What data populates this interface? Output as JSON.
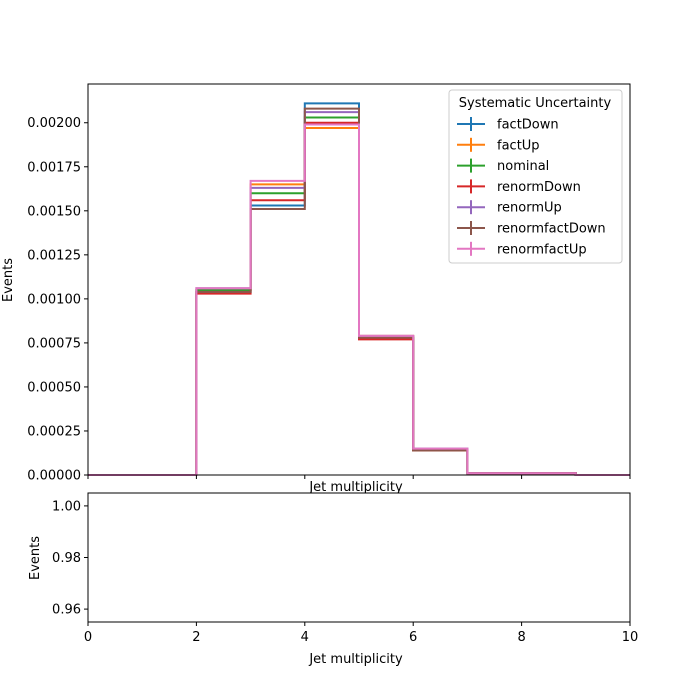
{
  "chart_data": [
    {
      "type": "line",
      "subtype": "step-histogram",
      "xlabel": "Jet multiplicity",
      "ylabel": "Events",
      "xlim": [
        0,
        10
      ],
      "ylim": [
        0,
        0.00222
      ],
      "yticks": [
        "0.00000",
        "0.00025",
        "0.00050",
        "0.00075",
        "0.00100",
        "0.00125",
        "0.00150",
        "0.00175",
        "0.00200"
      ],
      "ytick_values": [
        0,
        0.00025,
        0.0005,
        0.00075,
        0.001,
        0.00125,
        0.0015,
        0.00175,
        0.002
      ],
      "bin_edges": [
        0,
        1,
        2,
        3,
        4,
        5,
        6,
        7,
        8,
        9,
        10
      ],
      "legend": {
        "title": "Systematic Uncertainty",
        "placement": "top-right"
      },
      "grid": false,
      "series": [
        {
          "name": "factDown",
          "color": "#1f77b4",
          "values": [
            0,
            0,
            0.00104,
            0.00153,
            0.00211,
            0.00078,
            0.00014,
            1e-05,
            1e-05,
            0
          ]
        },
        {
          "name": "factUp",
          "color": "#ff7f0e",
          "values": [
            0,
            0,
            0.00105,
            0.00165,
            0.00197,
            0.00079,
            0.00014,
            1e-05,
            1e-05,
            0
          ]
        },
        {
          "name": "nominal",
          "color": "#2ca02c",
          "values": [
            0,
            0,
            0.00105,
            0.0016,
            0.00203,
            0.00078,
            0.00014,
            1e-05,
            1e-05,
            0
          ]
        },
        {
          "name": "renormDown",
          "color": "#d62728",
          "values": [
            0,
            0,
            0.00103,
            0.00156,
            0.002,
            0.00077,
            0.00014,
            1e-05,
            1e-05,
            0
          ]
        },
        {
          "name": "renormUp",
          "color": "#9467bd",
          "values": [
            0,
            0,
            0.00106,
            0.00163,
            0.00206,
            0.00079,
            0.00015,
            1e-05,
            1e-05,
            0
          ]
        },
        {
          "name": "renormfactDown",
          "color": "#8c564b",
          "values": [
            0,
            0,
            0.00104,
            0.00151,
            0.00208,
            0.00078,
            0.00014,
            1e-05,
            1e-05,
            0
          ]
        },
        {
          "name": "renormfactUp",
          "color": "#e377c2",
          "values": [
            0,
            0,
            0.00106,
            0.00167,
            0.00199,
            0.00079,
            0.00015,
            1e-05,
            1e-05,
            0
          ]
        }
      ]
    },
    {
      "type": "line",
      "xlabel": "Jet multiplicity",
      "ylabel": "Events",
      "xlim": [
        0,
        10
      ],
      "ylim": [
        0.955,
        1.005
      ],
      "xticks": [
        "0",
        "2",
        "4",
        "6",
        "8",
        "10"
      ],
      "xtick_values": [
        0,
        2,
        4,
        6,
        8,
        10
      ],
      "yticks": [
        "0.96",
        "0.98",
        "1.00"
      ],
      "ytick_values": [
        0.96,
        0.98,
        1.0
      ],
      "grid": false,
      "series": []
    }
  ]
}
